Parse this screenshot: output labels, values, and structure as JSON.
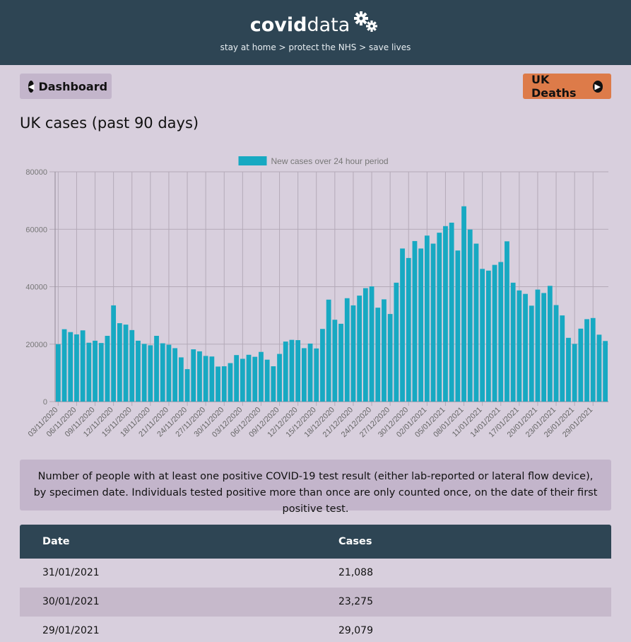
{
  "header": {
    "brand_bold": "covid",
    "brand_light": "data",
    "tagline": "stay at home > protect the NHS > save lives"
  },
  "nav": {
    "dashboard_label": "Dashboard",
    "deaths_label": "UK Deaths"
  },
  "page_title": "UK cases (past 90 days)",
  "chart_data": {
    "type": "bar",
    "legend": "New cases over 24 hour period",
    "legend_position": "top",
    "color": "#17a9c2",
    "ylim": [
      0,
      80000
    ],
    "yticks": [
      0,
      20000,
      40000,
      60000,
      80000
    ],
    "grid": true,
    "categories": [
      "03/11/2020",
      "04/11/2020",
      "05/11/2020",
      "06/11/2020",
      "07/11/2020",
      "08/11/2020",
      "09/11/2020",
      "10/11/2020",
      "11/11/2020",
      "12/11/2020",
      "13/11/2020",
      "14/11/2020",
      "15/11/2020",
      "16/11/2020",
      "17/11/2020",
      "18/11/2020",
      "19/11/2020",
      "20/11/2020",
      "21/11/2020",
      "22/11/2020",
      "23/11/2020",
      "24/11/2020",
      "25/11/2020",
      "26/11/2020",
      "27/11/2020",
      "28/11/2020",
      "29/11/2020",
      "30/11/2020",
      "01/12/2020",
      "02/12/2020",
      "03/12/2020",
      "04/12/2020",
      "05/12/2020",
      "06/12/2020",
      "07/12/2020",
      "08/12/2020",
      "09/12/2020",
      "10/12/2020",
      "11/12/2020",
      "12/12/2020",
      "13/12/2020",
      "14/12/2020",
      "15/12/2020",
      "16/12/2020",
      "17/12/2020",
      "18/12/2020",
      "19/12/2020",
      "20/12/2020",
      "21/12/2020",
      "22/12/2020",
      "23/12/2020",
      "24/12/2020",
      "25/12/2020",
      "26/12/2020",
      "27/12/2020",
      "28/12/2020",
      "29/12/2020",
      "30/12/2020",
      "31/12/2020",
      "01/01/2021",
      "02/01/2021",
      "03/01/2021",
      "04/01/2021",
      "05/01/2021",
      "06/01/2021",
      "07/01/2021",
      "08/01/2021",
      "09/01/2021",
      "10/01/2021",
      "11/01/2021",
      "12/01/2021",
      "13/01/2021",
      "14/01/2021",
      "15/01/2021",
      "16/01/2021",
      "17/01/2021",
      "18/01/2021",
      "19/01/2021",
      "20/01/2021",
      "21/01/2021",
      "22/01/2021",
      "23/01/2021",
      "24/01/2021",
      "25/01/2021",
      "26/01/2021",
      "27/01/2021",
      "28/01/2021",
      "29/01/2021",
      "30/01/2021",
      "31/01/2021"
    ],
    "values": [
      20000,
      25200,
      24200,
      23400,
      24800,
      20500,
      21200,
      20400,
      22900,
      33500,
      27300,
      26800,
      24900,
      21200,
      20100,
      19600,
      22900,
      20300,
      19800,
      18600,
      15400,
      11300,
      18200,
      17500,
      15900,
      15700,
      12200,
      12300,
      13400,
      16200,
      14900,
      16300,
      15600,
      17300,
      14600,
      12300,
      16600,
      20900,
      21500,
      21400,
      18600,
      20200,
      18500,
      25300,
      35500,
      28500,
      27100,
      36000,
      33500,
      36900,
      39500,
      40100,
      32700,
      35600,
      30500,
      41400,
      53300,
      50000,
      55900,
      53300,
      57800,
      55000,
      58800,
      61100,
      62300,
      52600,
      68000,
      59900,
      55000,
      46200,
      45600,
      47600,
      48600,
      55800,
      41400,
      38700,
      37500,
      33400,
      39000,
      37800,
      40300,
      33600,
      30000,
      22200,
      20100,
      25400,
      28700,
      29100,
      23300,
      21100
    ],
    "xtick_labels": [
      "03/11/2020",
      "06/11/2020",
      "09/11/2020",
      "12/11/2020",
      "15/11/2020",
      "18/11/2020",
      "21/11/2020",
      "24/11/2020",
      "27/11/2020",
      "30/11/2020",
      "03/12/2020",
      "06/12/2020",
      "09/12/2020",
      "12/12/2020",
      "15/12/2020",
      "18/12/2020",
      "21/12/2020",
      "24/12/2020",
      "27/12/2020",
      "30/12/2020",
      "02/01/2021",
      "05/01/2021",
      "08/01/2021",
      "11/01/2021",
      "14/01/2021",
      "17/01/2021",
      "20/01/2021",
      "23/01/2021",
      "26/01/2021",
      "29/01/2021"
    ]
  },
  "info_text": "Number of people with at least one positive COVID-19 test result (either lab-reported or lateral flow device), by specimen date. Individuals tested positive more than once are only counted once, on the date of their first positive test.",
  "table": {
    "headers": [
      "Date",
      "Cases"
    ],
    "rows": [
      {
        "date": "31/01/2021",
        "cases": "21,088"
      },
      {
        "date": "30/01/2021",
        "cases": "23,275"
      },
      {
        "date": "29/01/2021",
        "cases": "29,079"
      }
    ]
  }
}
